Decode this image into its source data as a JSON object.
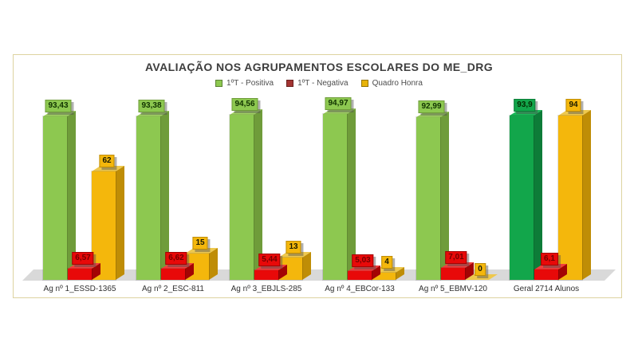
{
  "title": "AVALIAÇÃO NOS AGRUPAMENTOS ESCOLARES DO ME_DRG",
  "legend": [
    {
      "label": "1ºT - Positiva"
    },
    {
      "label": "1ºT - Negativa"
    },
    {
      "label": "Quadro Honra"
    }
  ],
  "chart_data": {
    "type": "bar",
    "style": "3d-column",
    "title": "AVALIAÇÃO NOS AGRUPAMENTOS ESCOLARES DO ME_DRG",
    "categories": [
      "Ag nº 1_ESSD-1365",
      "Ag nº 2_ESC-811",
      "Ag nº 3_EBJLS-285",
      "Ag nº 4_EBCor-133",
      "Ag nº 5_EBMV-120",
      "Geral 2714 Alunos"
    ],
    "series": [
      {
        "name": "1ºT - Positiva",
        "values": [
          93.43,
          93.38,
          94.56,
          94.97,
          92.99,
          93.9
        ],
        "display_labels": [
          "93,43",
          "93,38",
          "94,56",
          "94,97",
          "92,99",
          "93,9"
        ]
      },
      {
        "name": "1ºT - Negativa",
        "values": [
          6.57,
          6.62,
          5.44,
          5.03,
          7.01,
          6.1
        ],
        "display_labels": [
          "6,57",
          "6,62",
          "5,44",
          "5,03",
          "7,01",
          "6,1"
        ]
      },
      {
        "name": "Quadro Honra",
        "values": [
          62,
          15,
          13,
          4,
          0,
          94
        ],
        "display_labels": [
          "62",
          "15",
          "13",
          "4",
          "0",
          "94"
        ]
      }
    ],
    "ylim": [
      0,
      100
    ],
    "grid": false,
    "legend_position": "top"
  },
  "colors": {
    "panel_border": "#ddd3a0",
    "floor": "#d9d9d9",
    "legend_swatches": [
      "#8dc850",
      "#a33432",
      "#e7b309"
    ],
    "positive": {
      "face": "#8dc850",
      "side": "#6f9c3a",
      "top": "#a2d463",
      "text": "#113300"
    },
    "positive_geral": {
      "face": "#12a64b",
      "side": "#0d7c38",
      "top": "#1bb958",
      "text": "#032b00"
    },
    "negative": {
      "face": "#e80909",
      "side": "#a30404",
      "top": "#f23d3d",
      "text": "#730000"
    },
    "honra": {
      "face": "#f4b70c",
      "side": "#bf8d06",
      "top": "#eec84d",
      "text": "#1a1a00"
    }
  }
}
